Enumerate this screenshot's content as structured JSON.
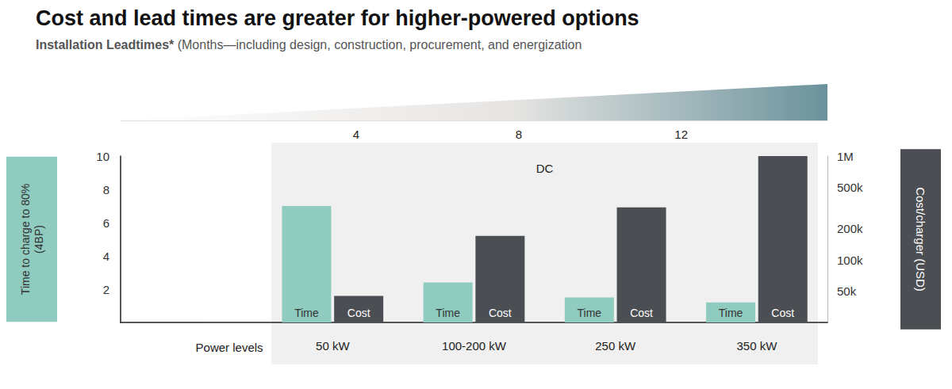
{
  "chart_data": {
    "type": "bar",
    "title": "Cost and lead times are greater for higher-powered options",
    "subtitle": "Installation Leadtimes* (Months—including design, construction, procurement, and energization",
    "xlabel": "Power levels",
    "ylabel": "Time to charge to 80%\n(4BP)",
    "y2label": "Cost/charger (USD)",
    "annotation": "DC",
    "categories": [
      null,
      "50 kW",
      "100-200 kW",
      "250 kW",
      "350 kW"
    ],
    "series": [
      {
        "name": "Time",
        "color": "#8fcbbf",
        "values": [
          null,
          7,
          2.4,
          1.5,
          1.2
        ]
      },
      {
        "name": "Cost",
        "color": "#4b4e52",
        "axis": "y2",
        "values": [
          null,
          45000,
          170000,
          320000,
          1000000
        ]
      }
    ],
    "ylim": [
      0,
      10
    ],
    "yticks": [
      2,
      4,
      6,
      8,
      10
    ],
    "y2lim": [
      25000,
      1000000
    ],
    "y2ticks": [
      {
        "value": 50000,
        "label": "50k"
      },
      {
        "value": 100000,
        "label": "100k"
      },
      {
        "value": 200000,
        "label": "200k"
      },
      {
        "value": 500000,
        "label": "500k"
      },
      {
        "value": 1000000,
        "label": "1M"
      }
    ],
    "x2lim": [
      -1.8,
      15.6
    ],
    "x2ticks": [
      4,
      8,
      12
    ],
    "log": "y2",
    "grid": false
  }
}
